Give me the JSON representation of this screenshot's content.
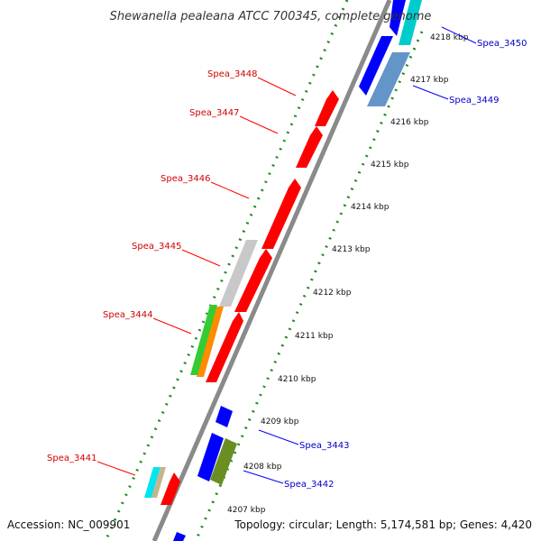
{
  "title": "Shewanella pealeana ATCC 700345, complete genome",
  "accession": "Accession: NC_009901",
  "topology": "Topology: circular; Length: 5,174,581 bp; Genes: 4,420",
  "colors": {
    "forward_gene": "#ff0000",
    "reverse_gene": "#0000ff",
    "backbone": "#8a8a8a",
    "gc_dots": "#1e8c1e",
    "forward_label": "#d40000",
    "reverse_label": "#0000c8"
  },
  "scale_ticks": [
    "4218 kbp",
    "4217 kbp",
    "4216 kbp",
    "4215 kbp",
    "4214 kbp",
    "4213 kbp",
    "4212 kbp",
    "4211 kbp",
    "4210 kbp",
    "4209 kbp",
    "4208 kbp",
    "4207 kbp"
  ],
  "forward_labels": [
    "Spea_3448",
    "Spea_3447",
    "Spea_3446",
    "Spea_3445",
    "Spea_3444",
    "Spea_3441"
  ],
  "reverse_labels": [
    "Spea_3450",
    "Spea_3449",
    "Spea_3443",
    "Spea_3442"
  ]
}
